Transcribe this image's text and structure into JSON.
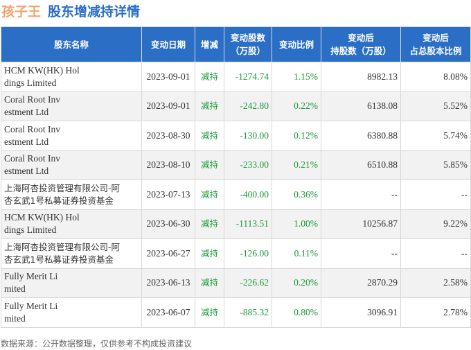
{
  "title": {
    "company": "孩子王",
    "subtitle": "股东增减持详情"
  },
  "table": {
    "headers": [
      "股东名称",
      "变动日期",
      "增减",
      "变动股数\n（万股）",
      "变动比例",
      "变动后\n持股数（万股）",
      "变动后\n占总股本比例"
    ],
    "rows": [
      {
        "name": "HCM KW(HK) Hol\ndings Limited",
        "date": "2023-09-01",
        "type": "减持",
        "shares": "-1274.74",
        "ratio": "1.15%",
        "after": "8982.13",
        "pct": "8.08%"
      },
      {
        "name": "Coral Root Inv\nestment Ltd",
        "date": "2023-09-01",
        "type": "减持",
        "shares": "-242.80",
        "ratio": "0.22%",
        "after": "6138.08",
        "pct": "5.52%"
      },
      {
        "name": "Coral Root Inv\nestment Ltd",
        "date": "2023-08-30",
        "type": "减持",
        "shares": "-130.00",
        "ratio": "0.12%",
        "after": "6380.88",
        "pct": "5.74%"
      },
      {
        "name": "Coral Root Inv\nestment Ltd",
        "date": "2023-08-10",
        "type": "减持",
        "shares": "-233.00",
        "ratio": "0.21%",
        "after": "6510.88",
        "pct": "5.85%"
      },
      {
        "name": "上海阿杏投资管理有限公司-阿\n杏玄武1号私募证券投资基金",
        "date": "2023-07-13",
        "type": "减持",
        "shares": "-400.00",
        "ratio": "0.36%",
        "after": "--",
        "pct": "--"
      },
      {
        "name": "HCM KW(HK) Hol\ndings Limited",
        "date": "2023-06-30",
        "type": "减持",
        "shares": "-1113.51",
        "ratio": "1.00%",
        "after": "10256.87",
        "pct": "9.22%"
      },
      {
        "name": "上海阿杏投资管理有限公司-阿\n杏玄武1号私募证券投资基金",
        "date": "2023-06-27",
        "type": "减持",
        "shares": "-126.00",
        "ratio": "0.11%",
        "after": "--",
        "pct": "--"
      },
      {
        "name": "Fully Merit Li\nmited",
        "date": "2023-06-13",
        "type": "减持",
        "shares": "-226.62",
        "ratio": "0.20%",
        "after": "2870.29",
        "pct": "2.58%"
      },
      {
        "name": "Fully Merit Li\nmited",
        "date": "2023-06-07",
        "type": "减持",
        "shares": "-885.32",
        "ratio": "0.80%",
        "after": "3096.91",
        "pct": "2.78%"
      }
    ]
  },
  "source": "数据来源：公开数据整理，仅供参考不构成投资建议"
}
